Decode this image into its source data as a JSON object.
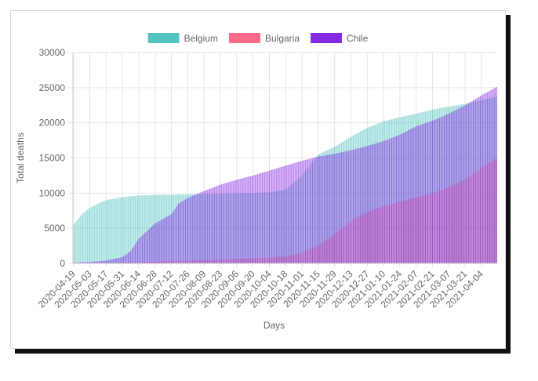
{
  "chart_data": {
    "type": "bar",
    "xlabel": "Days",
    "ylabel": "Total deaths",
    "ylim": [
      0,
      30000
    ],
    "y_ticks": [
      0,
      5000,
      10000,
      15000,
      20000,
      25000,
      30000
    ],
    "x_start": "2020-04-19",
    "x_end": "2021-04-17",
    "x_tick_labels": [
      "2020-04-19",
      "2020-05-03",
      "2020-05-17",
      "2020-05-31",
      "2020-06-14",
      "2020-06-28",
      "2020-07-12",
      "2020-07-26",
      "2020-08-09",
      "2020-08-23",
      "2020-09-06",
      "2020-09-20",
      "2020-10-04",
      "2020-10-18",
      "2020-11-01",
      "2020-11-15",
      "2020-11-29",
      "2020-12-13",
      "2020-12-27",
      "2021-01-10",
      "2021-01-24",
      "2021-02-07",
      "2021-02-21",
      "2021-03-07",
      "2021-03-21",
      "2021-04-04"
    ],
    "grid": true,
    "legend_position": "top",
    "series": [
      {
        "name": "Belgium",
        "color": "#4bc0c0",
        "points": [
          [
            "2020-04-19",
            5500
          ],
          [
            "2020-04-26",
            7000
          ],
          [
            "2020-05-03",
            7900
          ],
          [
            "2020-05-10",
            8500
          ],
          [
            "2020-05-17",
            9000
          ],
          [
            "2020-05-31",
            9450
          ],
          [
            "2020-06-14",
            9650
          ],
          [
            "2020-06-28",
            9750
          ],
          [
            "2020-07-26",
            9820
          ],
          [
            "2020-09-06",
            9950
          ],
          [
            "2020-10-04",
            10100
          ],
          [
            "2020-10-18",
            10500
          ],
          [
            "2020-11-01",
            12500
          ],
          [
            "2020-11-08",
            14000
          ],
          [
            "2020-11-15",
            15500
          ],
          [
            "2020-11-29",
            16600
          ],
          [
            "2020-12-13",
            18000
          ],
          [
            "2020-12-27",
            19300
          ],
          [
            "2021-01-10",
            20200
          ],
          [
            "2021-01-24",
            20800
          ],
          [
            "2021-02-07",
            21300
          ],
          [
            "2021-02-21",
            21900
          ],
          [
            "2021-03-07",
            22300
          ],
          [
            "2021-03-21",
            22700
          ],
          [
            "2021-04-04",
            23200
          ],
          [
            "2021-04-17",
            23700
          ]
        ]
      },
      {
        "name": "Bulgaria",
        "color": "#ff6384",
        "points": [
          [
            "2020-04-19",
            50
          ],
          [
            "2020-05-17",
            120
          ],
          [
            "2020-06-14",
            180
          ],
          [
            "2020-07-12",
            320
          ],
          [
            "2020-08-09",
            450
          ],
          [
            "2020-09-06",
            640
          ],
          [
            "2020-10-04",
            820
          ],
          [
            "2020-10-18",
            1000
          ],
          [
            "2020-11-01",
            1500
          ],
          [
            "2020-11-15",
            2600
          ],
          [
            "2020-11-29",
            4200
          ],
          [
            "2020-12-13",
            6000
          ],
          [
            "2020-12-27",
            7300
          ],
          [
            "2021-01-10",
            8100
          ],
          [
            "2021-01-24",
            8800
          ],
          [
            "2021-02-07",
            9400
          ],
          [
            "2021-02-21",
            10000
          ],
          [
            "2021-03-07",
            10800
          ],
          [
            "2021-03-21",
            12000
          ],
          [
            "2021-04-04",
            13600
          ],
          [
            "2021-04-17",
            15000
          ]
        ]
      },
      {
        "name": "Chile",
        "color": "#7d1fe0",
        "points": [
          [
            "2020-04-19",
            100
          ],
          [
            "2020-05-03",
            220
          ],
          [
            "2020-05-17",
            400
          ],
          [
            "2020-05-31",
            900
          ],
          [
            "2020-06-07",
            1800
          ],
          [
            "2020-06-14",
            3500
          ],
          [
            "2020-06-28",
            5700
          ],
          [
            "2020-07-12",
            7000
          ],
          [
            "2020-07-18",
            8500
          ],
          [
            "2020-07-26",
            9300
          ],
          [
            "2020-08-09",
            10300
          ],
          [
            "2020-08-23",
            11200
          ],
          [
            "2020-09-06",
            11900
          ],
          [
            "2020-09-20",
            12500
          ],
          [
            "2020-10-04",
            13200
          ],
          [
            "2020-10-18",
            13900
          ],
          [
            "2020-11-01",
            14600
          ],
          [
            "2020-11-15",
            15200
          ],
          [
            "2020-11-29",
            15600
          ],
          [
            "2020-12-13",
            16100
          ],
          [
            "2020-12-27",
            16700
          ],
          [
            "2021-01-10",
            17400
          ],
          [
            "2021-01-24",
            18300
          ],
          [
            "2021-02-07",
            19500
          ],
          [
            "2021-02-21",
            20300
          ],
          [
            "2021-03-07",
            21300
          ],
          [
            "2021-03-21",
            22500
          ],
          [
            "2021-04-04",
            23900
          ],
          [
            "2021-04-17",
            25100
          ]
        ]
      }
    ]
  }
}
